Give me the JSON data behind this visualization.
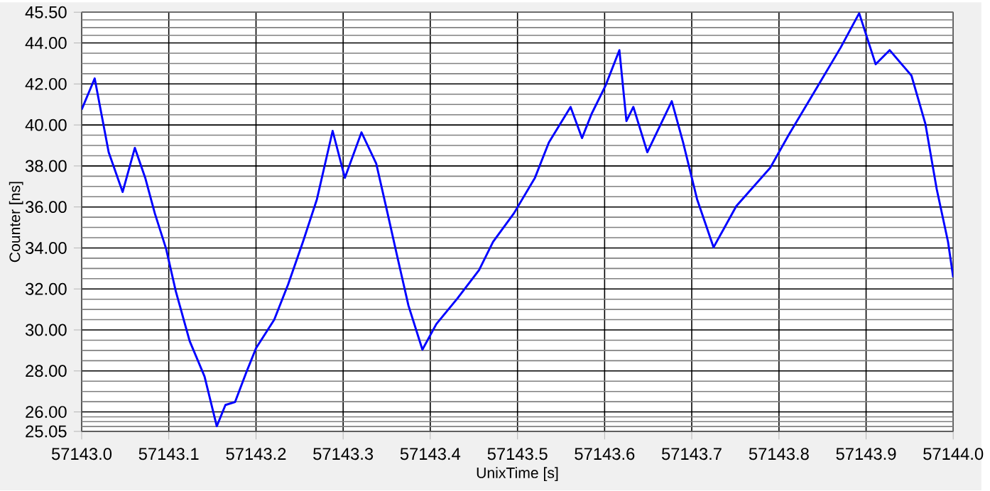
{
  "chart_data": {
    "type": "line",
    "xlabel": "UnixTime [s]",
    "ylabel": "Counter [ns]",
    "xlim": [
      57143.0,
      57144.0
    ],
    "xticks": [
      {
        "value": 57143.0,
        "label": "57143.0"
      },
      {
        "value": 57143.1,
        "label": "57143.1"
      },
      {
        "value": 57143.2,
        "label": "57143.2"
      },
      {
        "value": 57143.3,
        "label": "57143.3"
      },
      {
        "value": 57143.4,
        "label": "57143.4"
      },
      {
        "value": 57143.5,
        "label": "57143.5"
      },
      {
        "value": 57143.6,
        "label": "57143.6"
      },
      {
        "value": 57143.7,
        "label": "57143.7"
      },
      {
        "value": 57143.8,
        "label": "57143.8"
      },
      {
        "value": 57143.9,
        "label": "57143.9"
      },
      {
        "value": 57144.0,
        "label": "57144.0"
      }
    ],
    "ylim": [
      25.05,
      45.5
    ],
    "yticks": [
      {
        "value": 25.05,
        "label": "25.05"
      },
      {
        "value": 26,
        "label": "26.00"
      },
      {
        "value": 28,
        "label": "28.00"
      },
      {
        "value": 30,
        "label": "30.00"
      },
      {
        "value": 32,
        "label": "32.00"
      },
      {
        "value": 34,
        "label": "34.00"
      },
      {
        "value": 36,
        "label": "36.00"
      },
      {
        "value": 38,
        "label": "38.00"
      },
      {
        "value": 40,
        "label": "40.00"
      },
      {
        "value": 42,
        "label": "42.00"
      },
      {
        "value": 44,
        "label": "44.00"
      },
      {
        "value": 45.5,
        "label": "45.50"
      }
    ],
    "grid": true,
    "marker": "none",
    "line_style": "solid",
    "series": [
      {
        "color": "#0000ff",
        "x": [
          57143.0,
          57143.015,
          57143.031,
          57143.047,
          57143.061,
          57143.073,
          57143.084,
          57143.097,
          57143.108,
          57143.124,
          57143.141,
          57143.155,
          57143.165,
          57143.176,
          57143.189,
          57143.2,
          57143.221,
          57143.237,
          57143.254,
          57143.27,
          57143.288,
          57143.302,
          57143.321,
          57143.338,
          57143.351,
          57143.362,
          57143.375,
          57143.391,
          57143.407,
          57143.431,
          57143.456,
          57143.472,
          57143.496,
          57143.52,
          57143.536,
          57143.561,
          57143.574,
          57143.585,
          57143.601,
          57143.617,
          57143.625,
          57143.633,
          57143.649,
          57143.677,
          57143.69,
          57143.706,
          57143.725,
          57143.751,
          57143.79,
          57143.811,
          57143.843,
          57143.871,
          57143.892,
          57143.911,
          57143.927,
          57143.952,
          57143.968,
          57143.981,
          57143.994,
          57144.0
        ],
        "values": [
          40.75,
          42.27,
          38.67,
          36.73,
          38.88,
          37.42,
          35.69,
          33.96,
          31.88,
          29.46,
          27.73,
          25.3,
          26.34,
          26.48,
          27.93,
          29.11,
          30.5,
          32.23,
          34.3,
          36.38,
          39.71,
          37.42,
          39.64,
          38.11,
          35.69,
          33.61,
          31.19,
          29.04,
          30.29,
          31.53,
          32.92,
          34.3,
          35.69,
          37.42,
          39.15,
          40.88,
          39.36,
          40.54,
          41.92,
          43.65,
          40.19,
          40.88,
          38.67,
          41.16,
          39.15,
          36.38,
          34.03,
          36.04,
          37.91,
          39.5,
          41.78,
          43.79,
          45.45,
          42.96,
          43.65,
          42.41,
          40.05,
          36.87,
          34.3,
          32.57
        ]
      }
    ]
  }
}
